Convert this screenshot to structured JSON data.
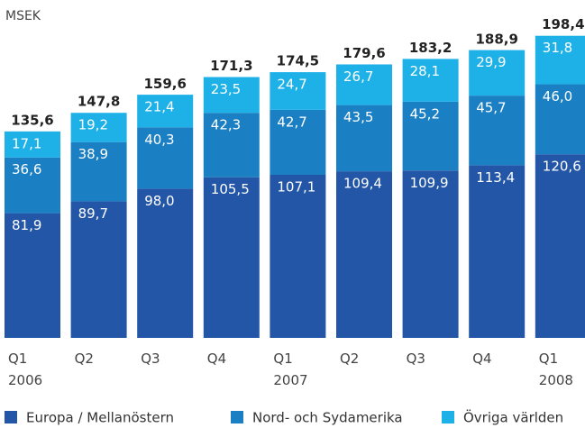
{
  "chart_data": {
    "type": "stacked_bar",
    "y_label": "MSEK",
    "categories": [
      "Q1\n2006",
      "Q2",
      "Q3",
      "Q4",
      "Q1\n2007",
      "Q2",
      "Q3",
      "Q4",
      "Q1\n2008"
    ],
    "series": [
      {
        "name": "Europa / Mellanöstern",
        "color": "#2356a6",
        "values": [
          81.9,
          89.7,
          98.0,
          105.5,
          107.1,
          109.4,
          109.9,
          113.4,
          120.6
        ],
        "value_labels": [
          "81,9",
          "89,7",
          "98,0",
          "105,5",
          "107,1",
          "109,4",
          "109,9",
          "113,4",
          "120,6"
        ]
      },
      {
        "name": "Nord- och Sydamerika",
        "color": "#1b7fc3",
        "values": [
          36.6,
          38.9,
          40.3,
          42.3,
          42.7,
          43.5,
          45.2,
          45.7,
          46.0
        ],
        "value_labels": [
          "36,6",
          "38,9",
          "40,3",
          "42,3",
          "42,7",
          "43,5",
          "45,2",
          "45,7",
          "46,0"
        ]
      },
      {
        "name": "Övriga världen",
        "color": "#1db1e8",
        "values": [
          17.1,
          19.2,
          21.4,
          23.5,
          24.7,
          26.7,
          28.1,
          29.9,
          31.8
        ],
        "value_labels": [
          "17,1",
          "19,2",
          "21,4",
          "23,5",
          "24,7",
          "26,7",
          "28,1",
          "29,9",
          "31,8"
        ]
      }
    ],
    "totals": [
      135.6,
      147.8,
      159.6,
      171.3,
      174.5,
      179.6,
      183.2,
      188.9,
      198.4
    ],
    "total_labels": [
      "135,6",
      "147,8",
      "159,6",
      "171,3",
      "174,5",
      "179,6",
      "183,2",
      "188,9",
      "198,4"
    ],
    "ylim": [
      0,
      200
    ],
    "legend": "bottom"
  }
}
